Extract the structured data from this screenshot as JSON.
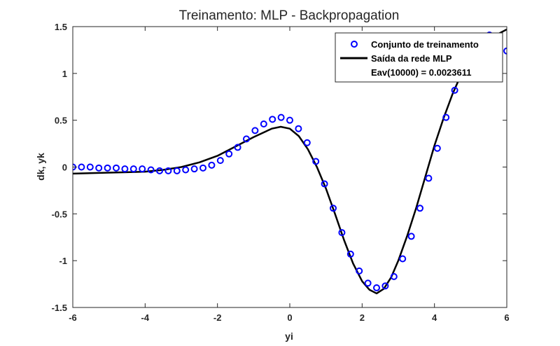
{
  "chart_data": {
    "type": "scatter",
    "title": "Treinamento: MLP - Backpropagation",
    "xlabel": "yi",
    "ylabel": "dk, yk",
    "xlim": [
      -6,
      6
    ],
    "ylim": [
      -1.5,
      1.5
    ],
    "xticks": [
      -6,
      -4,
      -2,
      0,
      2,
      4,
      6
    ],
    "xtick_labels": [
      "-6",
      "-4",
      "-2",
      "0",
      "2",
      "4",
      "6"
    ],
    "yticks": [
      -1.5,
      -1,
      -0.5,
      0,
      0.5,
      1,
      1.5
    ],
    "ytick_labels": [
      "-1.5",
      "-1",
      "-0.5",
      "0",
      "0.5",
      "1",
      "1.5"
    ],
    "grid": false,
    "legend_position": "top-right",
    "legend_note": "Eav(10000) = 0.0023611",
    "series": [
      {
        "name": "Conjunto de treinamento",
        "kind": "markers",
        "color": "#0000ff",
        "x": [
          -6.0,
          -5.76,
          -5.52,
          -5.28,
          -5.04,
          -4.8,
          -4.56,
          -4.32,
          -4.08,
          -3.84,
          -3.6,
          -3.36,
          -3.12,
          -2.88,
          -2.64,
          -2.4,
          -2.16,
          -1.92,
          -1.68,
          -1.44,
          -1.2,
          -0.96,
          -0.72,
          -0.48,
          -0.24,
          0.0,
          0.24,
          0.48,
          0.72,
          0.96,
          1.2,
          1.44,
          1.68,
          1.92,
          2.16,
          2.4,
          2.64,
          2.88,
          3.12,
          3.36,
          3.6,
          3.84,
          4.08,
          4.32,
          4.56,
          4.8,
          5.04,
          5.28,
          5.52,
          5.76,
          6.0
        ],
        "y": [
          0.0,
          0.0,
          0.0,
          -0.01,
          -0.01,
          -0.01,
          -0.02,
          -0.02,
          -0.02,
          -0.03,
          -0.04,
          -0.04,
          -0.04,
          -0.03,
          -0.02,
          -0.01,
          0.02,
          0.07,
          0.14,
          0.21,
          0.3,
          0.39,
          0.46,
          0.51,
          0.53,
          0.5,
          0.41,
          0.26,
          0.06,
          -0.18,
          -0.44,
          -0.7,
          -0.93,
          -1.11,
          -1.24,
          -1.29,
          -1.27,
          -1.17,
          -0.98,
          -0.74,
          -0.44,
          -0.12,
          0.2,
          0.53,
          0.82,
          1.07,
          1.25,
          1.37,
          1.41,
          1.37,
          1.24
        ]
      },
      {
        "name": "Saída da rede MLP",
        "kind": "line",
        "color": "#000000",
        "x": [
          -6.0,
          -5.0,
          -4.5,
          -4.0,
          -3.5,
          -3.0,
          -2.5,
          -2.0,
          -1.5,
          -1.0,
          -0.5,
          -0.25,
          0.0,
          0.25,
          0.5,
          0.75,
          1.0,
          1.25,
          1.5,
          1.75,
          2.0,
          2.2,
          2.4,
          2.6,
          2.8,
          3.0,
          3.25,
          3.5,
          3.75,
          4.0,
          4.25,
          4.5,
          4.75,
          5.0,
          5.25,
          5.5,
          5.75,
          6.0
        ],
        "y": [
          -0.07,
          -0.06,
          -0.055,
          -0.05,
          -0.03,
          0.0,
          0.05,
          0.12,
          0.22,
          0.32,
          0.41,
          0.43,
          0.41,
          0.33,
          0.19,
          0.0,
          -0.23,
          -0.5,
          -0.78,
          -1.03,
          -1.22,
          -1.31,
          -1.35,
          -1.3,
          -1.18,
          -1.0,
          -0.73,
          -0.43,
          -0.1,
          0.23,
          0.52,
          0.78,
          1.0,
          1.17,
          1.29,
          1.37,
          1.42,
          1.47
        ]
      }
    ]
  }
}
